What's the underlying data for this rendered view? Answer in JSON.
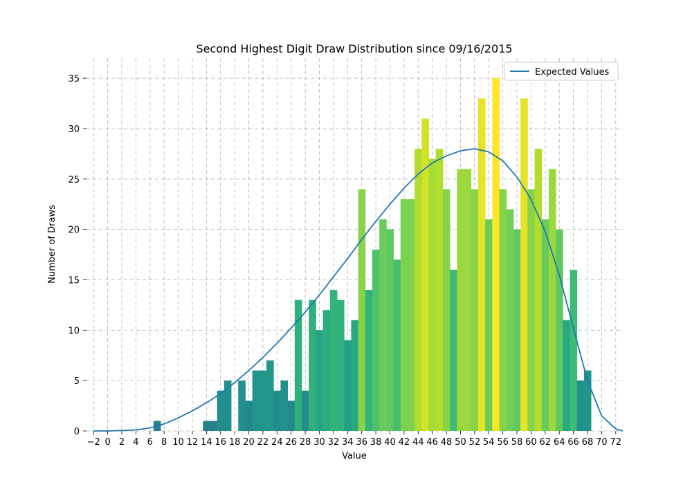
{
  "chart_data": {
    "type": "bar",
    "title": "Second Highest Digit Draw Distribution since 09/16/2015",
    "xlabel": "Value",
    "ylabel": "Number of Draws",
    "xlim": [
      -3,
      73
    ],
    "ylim": [
      0,
      37
    ],
    "grid": true,
    "xticks": [
      -2,
      0,
      2,
      4,
      6,
      8,
      10,
      12,
      14,
      16,
      18,
      20,
      22,
      24,
      26,
      28,
      30,
      32,
      34,
      36,
      38,
      40,
      42,
      44,
      46,
      48,
      50,
      52,
      54,
      56,
      58,
      60,
      62,
      64,
      66,
      68,
      70,
      72
    ],
    "yticks": [
      0,
      5,
      10,
      15,
      20,
      25,
      30,
      35
    ],
    "legend": {
      "position": "top-right",
      "entries": [
        "Expected Values"
      ]
    },
    "bar_colormap": "viridis (by value)",
    "bars": {
      "x": [
        7,
        14,
        15,
        16,
        17,
        19,
        20,
        21,
        22,
        23,
        24,
        25,
        26,
        27,
        28,
        29,
        30,
        31,
        32,
        33,
        34,
        35,
        36,
        37,
        38,
        39,
        40,
        41,
        42,
        43,
        44,
        45,
        46,
        47,
        48,
        49,
        50,
        51,
        52,
        53,
        54,
        55,
        56,
        57,
        58,
        59,
        60,
        61,
        62,
        63,
        64,
        65,
        66,
        67,
        68
      ],
      "values": [
        1,
        1,
        1,
        4,
        5,
        5,
        3,
        6,
        6,
        7,
        4,
        5,
        3,
        13,
        4,
        13,
        10,
        12,
        14,
        13,
        9,
        11,
        24,
        14,
        18,
        21,
        20,
        17,
        23,
        23,
        28,
        31,
        27,
        28,
        24,
        16,
        26,
        26,
        24,
        33,
        21,
        35,
        24,
        22,
        20,
        33,
        24,
        28,
        21,
        26,
        20,
        11,
        16,
        5,
        6
      ]
    },
    "series": [
      {
        "name": "Expected Values",
        "color": "#1f77b4",
        "x": [
          -2,
          0,
          2,
          4,
          6,
          8,
          10,
          12,
          14,
          16,
          18,
          20,
          22,
          24,
          26,
          28,
          30,
          32,
          34,
          36,
          38,
          40,
          42,
          44,
          46,
          48,
          50,
          52,
          54,
          56,
          58,
          60,
          62,
          64,
          66,
          68,
          70,
          72,
          73
        ],
        "y": [
          0,
          0,
          0.05,
          0.1,
          0.3,
          0.7,
          1.3,
          2,
          2.8,
          3.7,
          4.8,
          6,
          7.3,
          8.7,
          10.2,
          11.8,
          13.5,
          15.3,
          17.1,
          19,
          20.8,
          22.5,
          24.1,
          25.5,
          26.6,
          27.3,
          27.8,
          28,
          27.7,
          26.8,
          25.2,
          23,
          19.8,
          15.5,
          10.2,
          5,
          1.5,
          0.2,
          0
        ]
      }
    ]
  }
}
